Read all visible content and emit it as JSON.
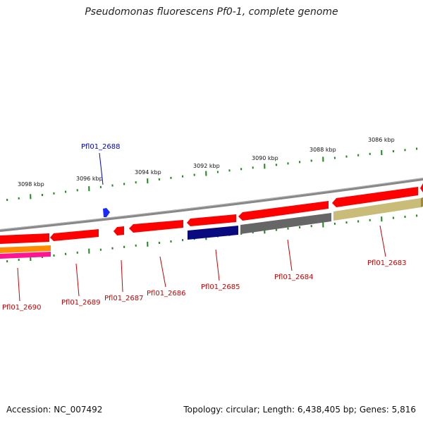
{
  "title": "Pseudomonas fluorescens Pf0-1, complete genome",
  "footer": {
    "accession": "Accession: NC_007492",
    "summary": "Topology: circular; Length: 6,438,405 bp; Genes: 5,816"
  },
  "ruler_labels": [
    "3098 kbp",
    "3096 kbp",
    "3094 kbp",
    "3092 kbp",
    "3090 kbp",
    "3088 kbp",
    "3086 kbp"
  ],
  "gene_labels": [
    {
      "text": "Pfl01_2688",
      "color": "#0000cc"
    },
    {
      "text": "Pfl01_2690",
      "color": "#cc0000"
    },
    {
      "text": "Pfl01_2689",
      "color": "#cc0000"
    },
    {
      "text": "Pfl01_2687",
      "color": "#cc0000"
    },
    {
      "text": "Pfl01_2686",
      "color": "#cc0000"
    },
    {
      "text": "Pfl01_2685",
      "color": "#cc0000"
    },
    {
      "text": "Pfl01_2684",
      "color": "#cc0000"
    },
    {
      "text": "Pfl01_2683",
      "color": "#cc0000"
    }
  ],
  "colors": {
    "backbone": "#888888",
    "ticks": "#1a8a1a",
    "cds_red": "#ff0000",
    "cds_navy": "#0a0a80",
    "cds_gray": "#666666",
    "cds_khaki": "#c8bc78",
    "cds_orange": "#ff8c00",
    "cds_magenta": "#ff1493",
    "feature_blue": "#1a2aff"
  }
}
